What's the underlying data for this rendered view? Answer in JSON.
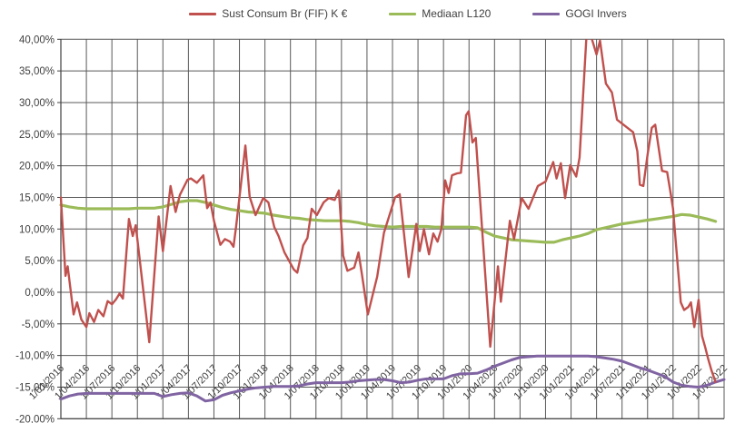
{
  "chart": {
    "title": "",
    "background": "#FFFFFF",
    "text_color": "#404040",
    "grid_color": "#595959",
    "axis_color": "#404040",
    "legend": [
      {
        "label": "Sust Consum Br (FIF) K €",
        "color": "#C0504D"
      },
      {
        "label": "Mediaan L120",
        "color": "#9BBB59"
      },
      {
        "label": "GOGI Invers",
        "color": "#8064A2"
      }
    ],
    "y_axis": {
      "min": -20,
      "max": 40,
      "step": 5,
      "format": "percent-comma",
      "tick_labels": [
        "40,00%",
        "35,00%",
        "30,00%",
        "25,00%",
        "20,00%",
        "15,00%",
        "10,00%",
        "5,00%",
        "0,00%",
        "-5,00%",
        "-10,00%",
        "-15,00%",
        "-20,00%"
      ]
    },
    "x_axis": {
      "tick_labels": [
        "1/01/2016",
        "1/04/2016",
        "1/07/2016",
        "1/10/2016",
        "1/01/2017",
        "1/04/2017",
        "1/07/2017",
        "1/10/2017",
        "1/01/2018",
        "1/04/2018",
        "1/07/2018",
        "1/10/2018",
        "1/01/2019",
        "1/04/2019",
        "1/07/2019",
        "1/10/2019",
        "1/01/2020",
        "1/04/2020",
        "1/07/2020",
        "1/10/2020",
        "1/01/2021",
        "1/04/2021",
        "1/07/2021",
        "1/10/2021",
        "1/01/2022",
        "1/04/2022",
        "1/07/2022"
      ],
      "label_rotation_deg": -45
    }
  },
  "chart_data": {
    "type": "line",
    "title": "",
    "xlabel": "",
    "ylabel": "",
    "ylim": [
      -20,
      40
    ],
    "grid": true,
    "legend_position": "top-center",
    "x_unit": "months since 1/01/2016 (0 = 1/01/2016, 3 = 1/04/2016, 78 = 1/07/2022)",
    "y_unit": "percent",
    "series": [
      {
        "name": "Sust Consum Br (FIF) K €",
        "color": "#C0504D",
        "width": 2.4,
        "points": [
          [
            0,
            15.0
          ],
          [
            0.55,
            2.6
          ],
          [
            0.8,
            4.1
          ],
          [
            1.5,
            -3.5
          ],
          [
            1.9,
            -1.6
          ],
          [
            2.4,
            -4.3
          ],
          [
            3.0,
            -5.5
          ],
          [
            3.35,
            -3.3
          ],
          [
            3.9,
            -4.7
          ],
          [
            4.4,
            -2.8
          ],
          [
            5.0,
            -3.8
          ],
          [
            5.5,
            -1.4
          ],
          [
            6.0,
            -1.9
          ],
          [
            6.5,
            -1.1
          ],
          [
            6.9,
            -0.2
          ],
          [
            7.3,
            -1.0
          ],
          [
            8.0,
            11.6
          ],
          [
            8.45,
            8.9
          ],
          [
            8.8,
            10.6
          ],
          [
            10.4,
            -7.9
          ],
          [
            11.5,
            12.0
          ],
          [
            12.0,
            6.5
          ],
          [
            12.9,
            16.8
          ],
          [
            13.5,
            12.7
          ],
          [
            14.0,
            15.4
          ],
          [
            14.9,
            17.8
          ],
          [
            15.3,
            18.0
          ],
          [
            16.0,
            17.3
          ],
          [
            16.75,
            18.5
          ],
          [
            17.2,
            13.3
          ],
          [
            17.6,
            14.2
          ],
          [
            18.0,
            11.3
          ],
          [
            18.75,
            7.5
          ],
          [
            19.3,
            8.4
          ],
          [
            19.9,
            8.0
          ],
          [
            20.3,
            7.2
          ],
          [
            20.6,
            10.3
          ],
          [
            21.7,
            23.2
          ],
          [
            22.2,
            15.1
          ],
          [
            22.9,
            12.2
          ],
          [
            23.8,
            14.9
          ],
          [
            24.4,
            14.2
          ],
          [
            25.1,
            10.3
          ],
          [
            25.6,
            8.9
          ],
          [
            26.3,
            6.3
          ],
          [
            27.4,
            3.6
          ],
          [
            27.8,
            3.1
          ],
          [
            28.5,
            7.4
          ],
          [
            29.0,
            8.6
          ],
          [
            29.5,
            13.2
          ],
          [
            30.1,
            12.2
          ],
          [
            30.9,
            14.2
          ],
          [
            31.5,
            14.9
          ],
          [
            32.2,
            14.6
          ],
          [
            32.7,
            16.1
          ],
          [
            33.2,
            5.8
          ],
          [
            33.7,
            3.4
          ],
          [
            34.5,
            3.9
          ],
          [
            35.0,
            6.3
          ],
          [
            35.4,
            2.9
          ],
          [
            36.1,
            -3.5
          ],
          [
            37.2,
            2.5
          ],
          [
            38.0,
            9.4
          ],
          [
            39.3,
            15.0
          ],
          [
            39.85,
            15.5
          ],
          [
            40.9,
            2.4
          ],
          [
            41.8,
            10.8
          ],
          [
            42.2,
            6.5
          ],
          [
            42.7,
            10.0
          ],
          [
            43.3,
            6.0
          ],
          [
            43.8,
            9.3
          ],
          [
            44.3,
            8.0
          ],
          [
            44.75,
            10.0
          ],
          [
            45.2,
            17.7
          ],
          [
            45.6,
            15.7
          ],
          [
            46.0,
            18.5
          ],
          [
            46.6,
            18.8
          ],
          [
            47.05,
            18.9
          ],
          [
            47.65,
            28.0
          ],
          [
            47.95,
            28.6
          ],
          [
            48.4,
            23.7
          ],
          [
            48.8,
            24.4
          ],
          [
            50.5,
            -8.6
          ],
          [
            51.4,
            4.1
          ],
          [
            51.75,
            -1.5
          ],
          [
            52.1,
            2.9
          ],
          [
            52.8,
            11.3
          ],
          [
            53.3,
            8.4
          ],
          [
            54.2,
            14.9
          ],
          [
            55.0,
            13.2
          ],
          [
            56.1,
            16.8
          ],
          [
            57.0,
            17.5
          ],
          [
            57.9,
            20.6
          ],
          [
            58.3,
            18.0
          ],
          [
            58.8,
            20.4
          ],
          [
            59.3,
            14.9
          ],
          [
            59.9,
            20.1
          ],
          [
            60.6,
            18.3
          ],
          [
            61.0,
            21.3
          ],
          [
            61.9,
            42.5
          ],
          [
            63.0,
            37.6
          ],
          [
            63.4,
            39.8
          ],
          [
            64.1,
            33.0
          ],
          [
            64.8,
            31.6
          ],
          [
            65.4,
            27.3
          ],
          [
            67.3,
            25.3
          ],
          [
            67.8,
            22.3
          ],
          [
            68.1,
            17.0
          ],
          [
            68.5,
            16.8
          ],
          [
            69.0,
            21.8
          ],
          [
            69.5,
            26.0
          ],
          [
            69.9,
            26.5
          ],
          [
            70.7,
            19.2
          ],
          [
            71.3,
            19.0
          ],
          [
            71.7,
            15.8
          ],
          [
            72.0,
            13.2
          ],
          [
            72.9,
            -1.6
          ],
          [
            73.3,
            -2.8
          ],
          [
            73.8,
            -2.3
          ],
          [
            74.1,
            -1.6
          ],
          [
            74.5,
            -5.5
          ],
          [
            75.0,
            -1.2
          ],
          [
            75.4,
            -6.9
          ],
          [
            75.8,
            -8.8
          ],
          [
            76.1,
            -10.4
          ],
          [
            76.5,
            -12.3
          ],
          [
            77.0,
            -14.2
          ]
        ]
      },
      {
        "name": "Mediaan L120",
        "color": "#9BBB59",
        "width": 3.2,
        "x_start": 0,
        "x_step": 1,
        "values": [
          13.8,
          13.5,
          13.3,
          13.2,
          13.2,
          13.2,
          13.2,
          13.2,
          13.2,
          13.3,
          13.3,
          13.3,
          13.5,
          13.9,
          14.3,
          14.5,
          14.5,
          14.2,
          13.8,
          13.4,
          13.1,
          12.9,
          12.7,
          12.6,
          12.5,
          12.2,
          12.0,
          11.8,
          11.7,
          11.5,
          11.4,
          11.3,
          11.3,
          11.3,
          11.2,
          11.0,
          10.7,
          10.5,
          10.4,
          10.3,
          10.4,
          10.4,
          10.4,
          10.4,
          10.3,
          10.3,
          10.3,
          10.3,
          10.3,
          10.2,
          9.5,
          8.9,
          8.6,
          8.3,
          8.2,
          8.1,
          8.0,
          7.9,
          7.9,
          8.3,
          8.6,
          8.9,
          9.3,
          9.9,
          10.2,
          10.5,
          10.8,
          11.0,
          11.2,
          11.4,
          11.6,
          11.8,
          12.0,
          12.3,
          12.2,
          11.9,
          11.6,
          11.2
        ]
      },
      {
        "name": "GOGI Invers",
        "color": "#8064A2",
        "width": 3.0,
        "x_start": 0,
        "x_step": 1,
        "values": [
          -16.9,
          -16.4,
          -16.1,
          -16.0,
          -16.0,
          -16.0,
          -16.0,
          -16.0,
          -16.0,
          -16.0,
          -16.0,
          -16.0,
          -16.5,
          -16.2,
          -16.0,
          -15.9,
          -16.4,
          -17.2,
          -17.0,
          -16.3,
          -15.9,
          -15.6,
          -15.3,
          -15.1,
          -15.0,
          -14.9,
          -14.9,
          -14.9,
          -14.8,
          -14.5,
          -14.3,
          -14.3,
          -14.3,
          -14.3,
          -14.2,
          -14.0,
          -13.9,
          -13.8,
          -13.8,
          -14.0,
          -14.3,
          -14.2,
          -13.9,
          -13.7,
          -13.7,
          -13.7,
          -13.2,
          -12.9,
          -12.9,
          -12.8,
          -12.3,
          -11.7,
          -11.2,
          -10.7,
          -10.3,
          -10.2,
          -10.1,
          -10.1,
          -10.1,
          -10.1,
          -10.1,
          -10.1,
          -10.1,
          -10.2,
          -10.4,
          -10.6,
          -10.9,
          -11.4,
          -11.9,
          -12.3,
          -12.8,
          -13.3,
          -14.2,
          -14.7,
          -14.9,
          -15.0,
          -14.7,
          -14.2,
          -13.8
        ]
      }
    ]
  }
}
